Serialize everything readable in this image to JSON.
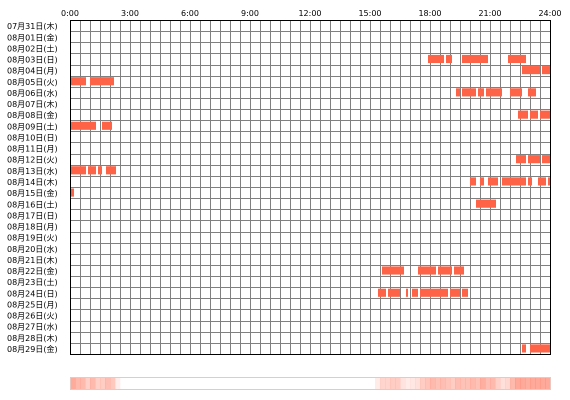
{
  "chart_data": {
    "type": "heatmap",
    "title": "",
    "xlabel": "",
    "ylabel": "",
    "x_ticks": [
      "0:00",
      "3:00",
      "6:00",
      "9:00",
      "12:00",
      "15:00",
      "18:00",
      "21:00",
      "24:00"
    ],
    "xlim": [
      0,
      24
    ],
    "grid": true,
    "colors": {
      "active": "#ff6347",
      "grid": "#808080",
      "frame": "#000000"
    },
    "rows": [
      {
        "label": "07月31日(木)",
        "intervals": []
      },
      {
        "label": "08月01日(金)",
        "intervals": []
      },
      {
        "label": "08月02日(土)",
        "intervals": []
      },
      {
        "label": "08月03日(日)",
        "intervals": [
          [
            17.9,
            18.7
          ],
          [
            18.8,
            19.1
          ],
          [
            19.6,
            20.9
          ],
          [
            21.9,
            22.8
          ]
        ]
      },
      {
        "label": "08月04日(月)",
        "intervals": [
          [
            22.6,
            23.5
          ],
          [
            23.6,
            24.0
          ]
        ]
      },
      {
        "label": "08月05日(火)",
        "intervals": [
          [
            0.0,
            0.8
          ],
          [
            1.0,
            2.2
          ]
        ]
      },
      {
        "label": "08月06日(水)",
        "intervals": [
          [
            19.3,
            19.5
          ],
          [
            19.6,
            20.3
          ],
          [
            20.4,
            20.7
          ],
          [
            20.8,
            21.6
          ],
          [
            22.0,
            22.6
          ],
          [
            22.9,
            23.3
          ]
        ]
      },
      {
        "label": "08月07日(木)",
        "intervals": []
      },
      {
        "label": "08月08日(金)",
        "intervals": [
          [
            22.4,
            22.9
          ],
          [
            23.0,
            23.4
          ],
          [
            23.5,
            24.0
          ]
        ]
      },
      {
        "label": "08月09日(土)",
        "intervals": [
          [
            0.0,
            1.3
          ],
          [
            1.6,
            2.1
          ]
        ]
      },
      {
        "label": "08月10日(日)",
        "intervals": []
      },
      {
        "label": "08月11日(月)",
        "intervals": []
      },
      {
        "label": "08月12日(火)",
        "intervals": [
          [
            22.3,
            22.8
          ],
          [
            22.9,
            23.5
          ],
          [
            23.6,
            24.0
          ]
        ]
      },
      {
        "label": "08月13日(水)",
        "intervals": [
          [
            0.0,
            0.8
          ],
          [
            0.9,
            1.3
          ],
          [
            1.4,
            1.6
          ],
          [
            1.8,
            2.3
          ]
        ]
      },
      {
        "label": "08月14日(木)",
        "intervals": [
          [
            20.0,
            20.3
          ],
          [
            20.5,
            20.7
          ],
          [
            20.9,
            21.4
          ],
          [
            21.6,
            22.8
          ],
          [
            22.9,
            23.1
          ],
          [
            23.4,
            23.8
          ],
          [
            23.9,
            24.0
          ]
        ]
      },
      {
        "label": "08月15日(金)",
        "intervals": [
          [
            0.0,
            0.2
          ]
        ]
      },
      {
        "label": "08月16日(土)",
        "intervals": [
          [
            20.3,
            21.3
          ]
        ]
      },
      {
        "label": "08月17日(日)",
        "intervals": []
      },
      {
        "label": "08月18日(月)",
        "intervals": []
      },
      {
        "label": "08月19日(火)",
        "intervals": []
      },
      {
        "label": "08月20日(水)",
        "intervals": []
      },
      {
        "label": "08月21日(木)",
        "intervals": []
      },
      {
        "label": "08月22日(金)",
        "intervals": [
          [
            15.6,
            16.7
          ],
          [
            17.4,
            18.3
          ],
          [
            18.4,
            19.1
          ],
          [
            19.2,
            19.7
          ]
        ]
      },
      {
        "label": "08月23日(土)",
        "intervals": []
      },
      {
        "label": "08月24日(日)",
        "intervals": [
          [
            15.4,
            15.8
          ],
          [
            15.9,
            16.5
          ],
          [
            16.8,
            16.9
          ],
          [
            17.1,
            17.4
          ],
          [
            17.5,
            18.9
          ],
          [
            19.0,
            19.5
          ],
          [
            19.6,
            19.9
          ]
        ]
      },
      {
        "label": "08月25日(月)",
        "intervals": []
      },
      {
        "label": "08月26日(火)",
        "intervals": []
      },
      {
        "label": "08月27日(水)",
        "intervals": []
      },
      {
        "label": "08月28日(木)",
        "intervals": []
      },
      {
        "label": "08月29日(金)",
        "intervals": [
          [
            22.6,
            22.8
          ],
          [
            23.0,
            24.0
          ]
        ]
      }
    ]
  }
}
